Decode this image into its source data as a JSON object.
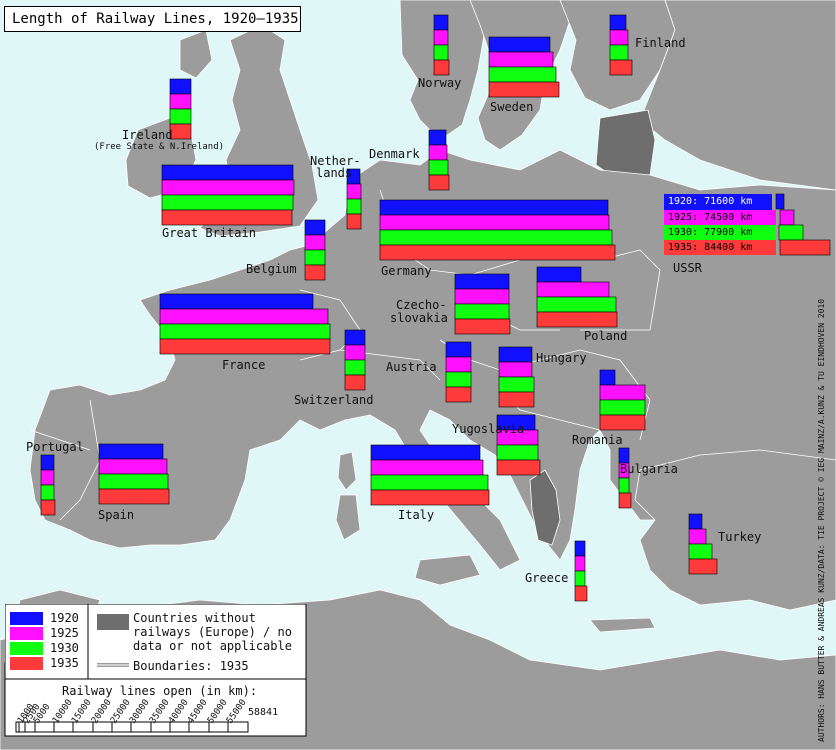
{
  "title": "Length of Railway Lines, 1920–1935",
  "colors": {
    "sea": "#dff7f7",
    "land": "#9c9c9c",
    "no_data": "#6e6e6e",
    "y1920": "#1010ff",
    "y1925": "#ff10ff",
    "y1930": "#10ff10",
    "y1935": "#ff3a3a"
  },
  "years": [
    "1920",
    "1925",
    "1930",
    "1935"
  ],
  "countries": [
    {
      "name": "Norway",
      "label": "Norway"
    },
    {
      "name": "Sweden",
      "label": "Sweden"
    },
    {
      "name": "Finland",
      "label": "Finland"
    },
    {
      "name": "Ireland",
      "label": "Ireland",
      "sublabel": "(Free State & N.Ireland)"
    },
    {
      "name": "Denmark",
      "label": "Denmark"
    },
    {
      "name": "Netherlands",
      "label": "Nether-",
      "label2": "lands"
    },
    {
      "name": "Great Britain",
      "label": "Great Britain"
    },
    {
      "name": "Germany",
      "label": "Germany"
    },
    {
      "name": "Belgium",
      "label": "Belgium"
    },
    {
      "name": "USSR",
      "label": "USSR"
    },
    {
      "name": "Czechoslovakia",
      "label": "Czecho-",
      "label2": "slovakia"
    },
    {
      "name": "Poland",
      "label": "Poland"
    },
    {
      "name": "France",
      "label": "France"
    },
    {
      "name": "Austria",
      "label": "Austria"
    },
    {
      "name": "Switzerland",
      "label": "Switzerland"
    },
    {
      "name": "Hungary",
      "label": "Hungary"
    },
    {
      "name": "Yugoslavia",
      "label": "Yugoslavia"
    },
    {
      "name": "Romania",
      "label": "Romania"
    },
    {
      "name": "Portugal",
      "label": "Portugal"
    },
    {
      "name": "Spain",
      "label": "Spain"
    },
    {
      "name": "Italy",
      "label": "Italy"
    },
    {
      "name": "Bulgaria",
      "label": "Bulgaria"
    },
    {
      "name": "Turkey",
      "label": "Turkey"
    },
    {
      "name": "Greece",
      "label": "Greece"
    }
  ],
  "ussr_values": [
    {
      "year": "1920",
      "text": "1920: 71600  km"
    },
    {
      "year": "1925",
      "text": "1925: 74500  km"
    },
    {
      "year": "1930",
      "text": "1930: 77900  km"
    },
    {
      "year": "1935",
      "text": "1935: 84400  km"
    }
  ],
  "legend": {
    "no_data_text": "Countries without railways (Europe) / no data or not applicable",
    "boundaries_text": "Boundaries: 1935"
  },
  "scale": {
    "title": "Railway lines open (in km):",
    "ticks": [
      "1000",
      "2500",
      "5000",
      "10000",
      "15000",
      "20000",
      "25000",
      "30000",
      "35000",
      "40000",
      "45000",
      "50000",
      "55000"
    ],
    "max_label": "58841"
  },
  "credit": "AUTHORS: HANS BUTTER & ANDREAS KUNZ/DATA: TIE PROJECT © IEG MAINZ/A.KUNZ & TU EINDHOVEN 2010"
}
